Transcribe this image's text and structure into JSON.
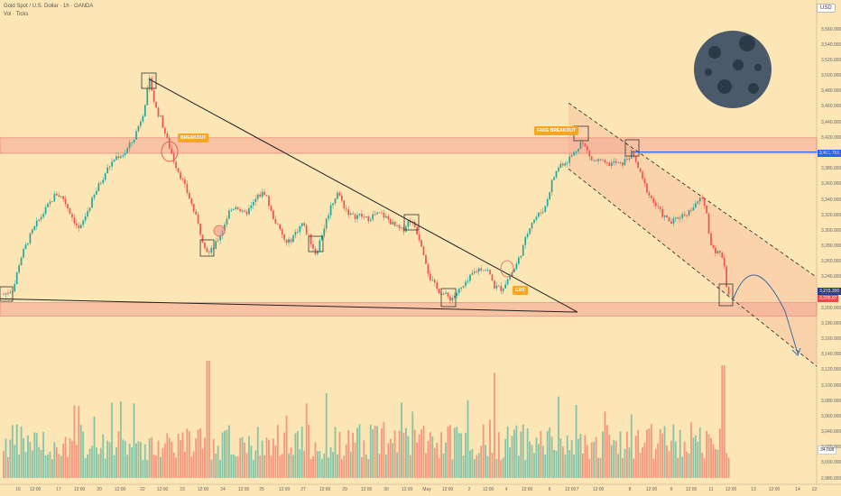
{
  "header": {
    "title": "Gold Spot / U.S. Dollar · 1h · OANDA",
    "subtitle": "Vol · Ticks",
    "currency": "USD"
  },
  "chart_data": {
    "type": "candlestick",
    "y_ticks": [
      "3,560.000",
      "3,540.000",
      "3,520.000",
      "3,500.000",
      "3,480.000",
      "3,460.000",
      "3,440.000",
      "3,420.000",
      "3,400.000",
      "3,380.000",
      "3,360.000",
      "3,340.000",
      "3,320.000",
      "3,300.000",
      "3,280.000",
      "3,260.000",
      "3,240.000",
      "3,220.000",
      "3,200.000",
      "3,180.000",
      "3,160.000",
      "3,140.000",
      "3,120.000",
      "3,100.000",
      "3,080.000",
      "3,060.000",
      "3,040.000",
      "3,020.000",
      "3,000.000",
      "2,980.000"
    ],
    "x_ticks": [
      "16",
      "12:00",
      "17",
      "12:00",
      "20",
      "12:00",
      "22",
      "12:00",
      "23",
      "12:00",
      "24",
      "12:00",
      "25",
      "12:00",
      "27",
      "12:00",
      "29",
      "12:00",
      "30",
      "12:00",
      "May",
      "12:00",
      "2",
      "12:00",
      "4",
      "12:00",
      "6",
      "12:00",
      "7",
      "12:00",
      "8",
      "12:00",
      "9",
      "12:00",
      "11",
      "12:00",
      "13",
      "12:00",
      "14",
      "12:"
    ],
    "price_labels": {
      "resistance": "3,401.755",
      "current": "3,215.300",
      "current_sub": "3,205.07",
      "volume": "34,008"
    },
    "annotations": [
      "BREAKOUT",
      "FAKE BREAKOUT",
      "EXIT"
    ],
    "colors": {
      "up": "#26a69a",
      "down": "#ef5350",
      "zone": "#f39a8c",
      "resistance_line": "#2962ff"
    }
  }
}
